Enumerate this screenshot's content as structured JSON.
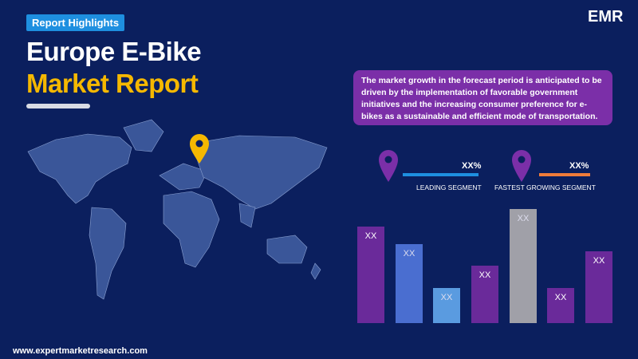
{
  "header": {
    "badge": "Report Highlights",
    "title_line1": "Europe E-Bike",
    "title_line2": "Market Report"
  },
  "logo": "EMR",
  "description": "The market growth in the forecast period is anticipated to be driven by the implementation of favorable government initiatives and the increasing consumer preference for e-bikes as a sustainable and efficient mode of transportation.",
  "segments": [
    {
      "value_label": "XX%",
      "label": "LEADING SEGMENT"
    },
    {
      "value_label": "XX%",
      "label": "FASTEST GROWING SEGMENT"
    }
  ],
  "bars": {
    "labels": [
      "XX",
      "XX",
      "XX",
      "XX",
      "XX",
      "XX",
      "XX"
    ]
  },
  "footer": "www.expertmarketresearch.com"
}
